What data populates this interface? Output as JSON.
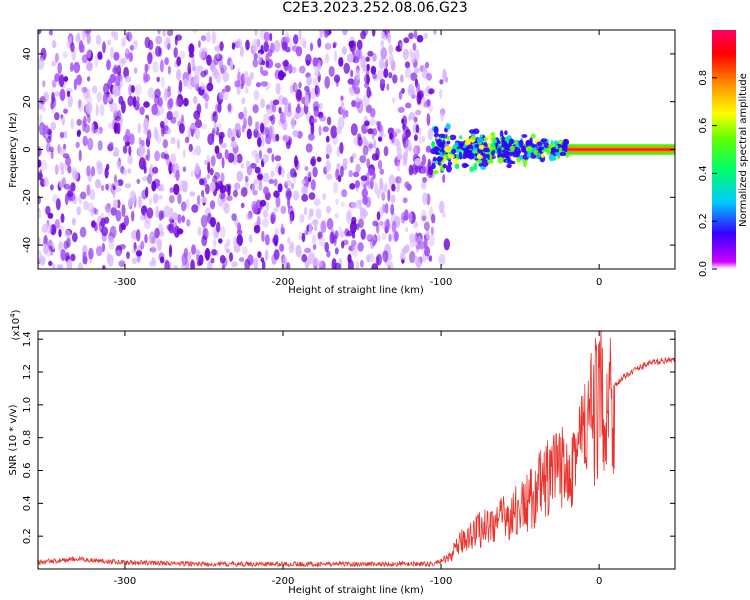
{
  "title": "C2E3.2023.252.08.06.G23",
  "colors": {
    "axis": "#000000",
    "snr_line": "#e8322b",
    "spectrogram_noise": "#7a00e0",
    "spectrogram_signal": "#ff1f1f",
    "background": "#ffffff"
  },
  "chart_data": [
    {
      "type": "heatmap",
      "title": "",
      "xlabel": "Height of straight line (km)",
      "ylabel": "Frequency (Hz)",
      "xlim": [
        -355,
        48
      ],
      "ylim": [
        -50,
        50
      ],
      "xticks": [
        "-300",
        "-200",
        "-100",
        "0"
      ],
      "xtick_values": [
        -300,
        -200,
        -100,
        0
      ],
      "yticks": [
        "40",
        "20",
        "0",
        "-20",
        "-40"
      ],
      "ytick_values": [
        40,
        20,
        0,
        -20,
        -40
      ],
      "grid": false,
      "colorbar": {
        "label": "Normalized spectral amplitude",
        "range": [
          0,
          1
        ],
        "ticks": [
          "0.0",
          "0.2",
          "0.4",
          "0.6",
          "0.8"
        ],
        "tick_values": [
          0.0,
          0.2,
          0.4,
          0.6,
          0.8
        ],
        "colormap": [
          "#cc00ff",
          "#3300ff",
          "#00ccff",
          "#00ff66",
          "#66ff00",
          "#ffff00",
          "#ff8800",
          "#ff0000",
          "#ff0066"
        ]
      },
      "regions": [
        {
          "x_range": [
            -355,
            -105
          ],
          "freq_range": [
            -50,
            50
          ],
          "amplitude_range": [
            0.0,
            0.2
          ]
        },
        {
          "x_range": [
            -105,
            -20
          ],
          "freq_range": [
            -12,
            12
          ],
          "amplitude_range": [
            0.2,
            0.6
          ]
        },
        {
          "x_range": [
            -20,
            48
          ],
          "freq_range": [
            -2,
            2
          ],
          "amplitude_range": [
            0.8,
            1.0
          ]
        }
      ]
    },
    {
      "type": "line",
      "title": "",
      "xlabel": "Height of straight line (km)",
      "ylabel": "SNR (10 * v/v)",
      "scale_label": "(x10",
      "scale_exponent": "4",
      "scale_close": ")",
      "xlim": [
        -355,
        48
      ],
      "ylim": [
        0,
        1.45
      ],
      "xticks": [
        "-300",
        "-200",
        "-100",
        "0"
      ],
      "xtick_values": [
        -300,
        -200,
        -100,
        0
      ],
      "yticks": [
        "0.2",
        "0.4",
        "0.6",
        "0.8",
        "1.0",
        "1.2",
        "1.4"
      ],
      "ytick_values": [
        0.2,
        0.4,
        0.6,
        0.8,
        1.0,
        1.2,
        1.4
      ],
      "grid": false,
      "series": [
        {
          "x": [
            -355,
            -330,
            -300,
            -250,
            -200,
            -150,
            -120,
            -105,
            -95,
            -85,
            -75,
            -65,
            -55,
            -45,
            -35,
            -25,
            -20,
            -15,
            -10,
            -5,
            0,
            10,
            20,
            30,
            40,
            48
          ],
          "values": [
            0.04,
            0.06,
            0.04,
            0.03,
            0.03,
            0.03,
            0.03,
            0.03,
            0.07,
            0.2,
            0.26,
            0.3,
            0.35,
            0.42,
            0.55,
            0.62,
            0.7,
            0.75,
            0.85,
            0.95,
            1.05,
            1.12,
            1.2,
            1.25,
            1.27,
            1.27
          ]
        }
      ]
    }
  ]
}
